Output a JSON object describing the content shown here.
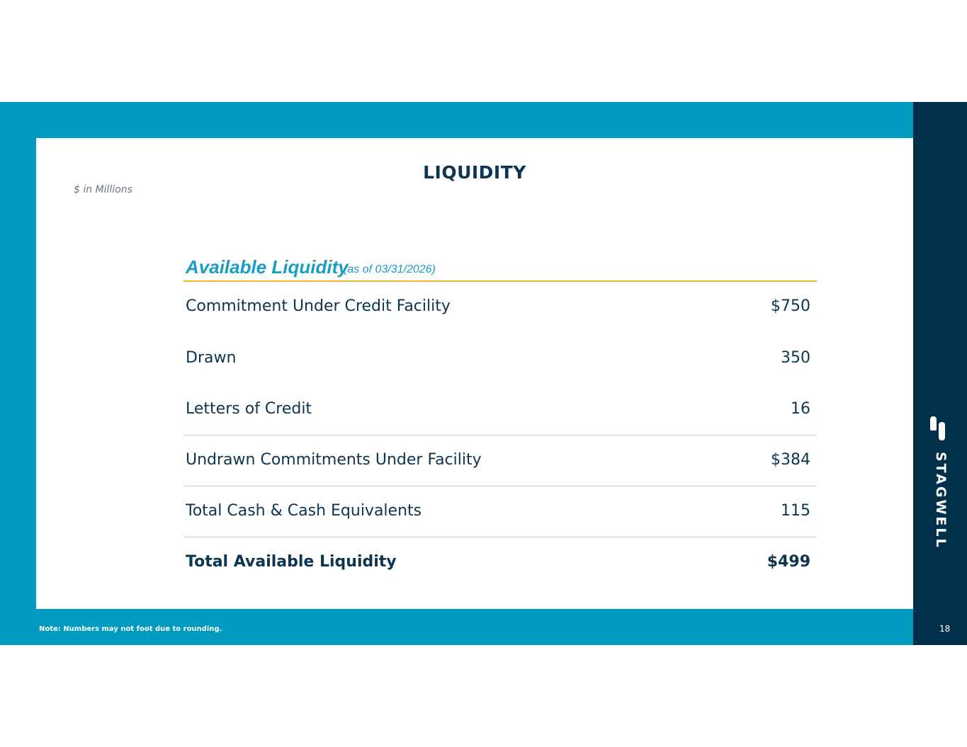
{
  "title": "LIQUIDITY",
  "unit_note": "$ in Millions",
  "table": {
    "heading": "Available Liquidity",
    "heading_sub": "(as of 03/31/2026)",
    "rows": [
      {
        "label": "Commitment Under Credit Facility",
        "value": "$750"
      },
      {
        "label": "Drawn",
        "value": "350"
      },
      {
        "label": "Letters of Credit",
        "value": "16"
      },
      {
        "label": "Undrawn Commitments Under Facility",
        "value": "$384"
      },
      {
        "label": "Total Cash & Cash Equivalents",
        "value": "115"
      },
      {
        "label": "Total Available Liquidity",
        "value": "$499"
      }
    ]
  },
  "footnote": "Note: Numbers may not foot due to rounding.",
  "page_number": "18",
  "brand": {
    "name": "STAGWELL",
    "logo_icon": "stagwell-logo-icon"
  },
  "colors": {
    "frame": "#009bbf",
    "sidebar": "#00304a",
    "heading_accent": "#1a9cc4",
    "rule_accent": "#f2b33d",
    "text": "#0d3550"
  }
}
